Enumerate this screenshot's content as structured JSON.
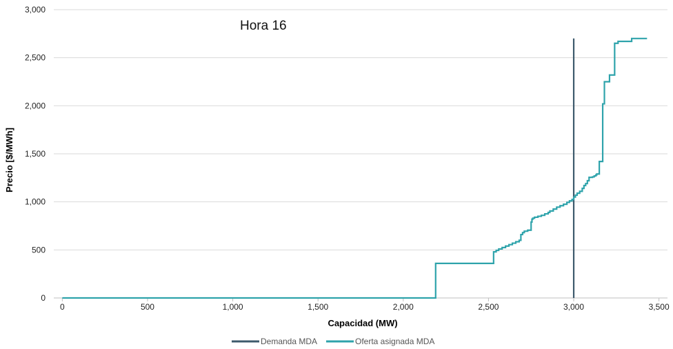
{
  "chart_data": {
    "type": "line",
    "title": "Hora 16",
    "xlabel": "Capacidad (MW)",
    "ylabel": "Precio [$/MWh]",
    "xlim": [
      -50,
      3550
    ],
    "ylim": [
      0,
      3000
    ],
    "x_ticks": [
      0,
      500,
      1000,
      1500,
      2000,
      2500,
      3000,
      3500
    ],
    "x_tick_labels": [
      "0",
      "500",
      "1,000",
      "1,500",
      "2,000",
      "2,500",
      "3,000",
      "3,500"
    ],
    "y_ticks": [
      0,
      500,
      1000,
      1500,
      2000,
      2500,
      3000
    ],
    "y_tick_labels": [
      "0",
      "500",
      "1,000",
      "1,500",
      "2,000",
      "2,500",
      "3,000"
    ],
    "grid": "horizontal",
    "legend_position": "bottom",
    "colors": {
      "demanda": "#3d5a6c",
      "oferta": "#2ea3ab",
      "grid": "#d9d9d9"
    },
    "series": [
      {
        "name": "Demanda MDA",
        "kind": "vertical-line",
        "x": [
          3000,
          3000
        ],
        "y": [
          0,
          2700
        ]
      },
      {
        "name": "Oferta asignada MDA",
        "kind": "step",
        "x": [
          0,
          2190,
          2190,
          2530,
          2530,
          2545,
          2560,
          2580,
          2600,
          2620,
          2640,
          2660,
          2680,
          2690,
          2690,
          2700,
          2710,
          2730,
          2750,
          2750,
          2755,
          2760,
          2770,
          2790,
          2810,
          2830,
          2850,
          2860,
          2880,
          2900,
          2920,
          2940,
          2960,
          2975,
          2990,
          3000,
          3010,
          3020,
          3035,
          3050,
          3060,
          3070,
          3080,
          3090,
          3100,
          3110,
          3120,
          3130,
          3135,
          3150,
          3150,
          3165,
          3170,
          3180,
          3180,
          3210,
          3210,
          3240,
          3240,
          3260,
          3260,
          3280,
          3330,
          3340,
          3430
        ],
        "y": [
          0,
          0,
          360,
          365,
          480,
          495,
          510,
          525,
          540,
          555,
          570,
          585,
          600,
          600,
          660,
          680,
          695,
          705,
          720,
          790,
          820,
          830,
          840,
          850,
          860,
          875,
          890,
          905,
          925,
          945,
          960,
          975,
          995,
          1010,
          1025,
          1050,
          1070,
          1090,
          1110,
          1140,
          1170,
          1190,
          1220,
          1255,
          1255,
          1260,
          1270,
          1280,
          1290,
          1300,
          1420,
          1420,
          2020,
          2020,
          2250,
          2250,
          2320,
          2320,
          2650,
          2650,
          2670,
          2670,
          2670,
          2700,
          2700
        ]
      }
    ]
  }
}
